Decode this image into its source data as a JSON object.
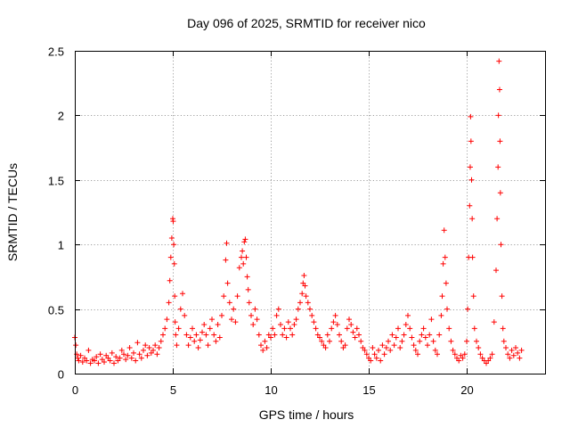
{
  "chart_data": {
    "type": "scatter",
    "title": "Day 096 of 2025, SRMTID for receiver nico",
    "xlabel": "GPS time / hours",
    "ylabel": "SRMTID / TECUs",
    "xlim": [
      0,
      24
    ],
    "ylim": [
      0,
      2.5
    ],
    "xticks": [
      0,
      5,
      10,
      15,
      20
    ],
    "xtick_labels": [
      "0",
      "5",
      "10",
      "15",
      "20"
    ],
    "yticks": [
      0,
      0.5,
      1,
      1.5,
      2,
      2.5
    ],
    "ytick_labels": [
      "0",
      "0.5",
      "1",
      "1.5",
      "2",
      "2.5"
    ],
    "grid": true,
    "marker": "+",
    "series": [
      {
        "name": "SRMTID",
        "color": "#ff0000",
        "x": [
          0.0,
          0.05,
          0.1,
          0.15,
          0.2,
          0.3,
          0.4,
          0.5,
          0.6,
          0.7,
          0.8,
          0.9,
          1.0,
          1.1,
          1.2,
          1.3,
          1.4,
          1.5,
          1.6,
          1.7,
          1.8,
          1.9,
          2.0,
          2.1,
          2.2,
          2.3,
          2.4,
          2.5,
          2.6,
          2.7,
          2.8,
          2.9,
          3.0,
          3.1,
          3.2,
          3.3,
          3.4,
          3.5,
          3.6,
          3.7,
          3.8,
          3.9,
          4.0,
          4.1,
          4.2,
          4.3,
          4.4,
          4.5,
          4.6,
          4.7,
          4.8,
          4.85,
          4.9,
          4.95,
          5.0,
          5.02,
          5.05,
          5.08,
          5.1,
          5.12,
          5.15,
          5.2,
          5.3,
          5.4,
          5.5,
          5.6,
          5.7,
          5.8,
          5.9,
          6.0,
          6.1,
          6.2,
          6.3,
          6.4,
          6.5,
          6.6,
          6.7,
          6.8,
          6.9,
          7.0,
          7.1,
          7.2,
          7.3,
          7.4,
          7.5,
          7.6,
          7.7,
          7.75,
          7.8,
          7.9,
          8.0,
          8.1,
          8.2,
          8.3,
          8.4,
          8.5,
          8.55,
          8.6,
          8.65,
          8.7,
          8.75,
          8.8,
          8.85,
          8.9,
          9.0,
          9.1,
          9.2,
          9.3,
          9.4,
          9.5,
          9.6,
          9.7,
          9.8,
          9.9,
          10.0,
          10.1,
          10.2,
          10.3,
          10.4,
          10.5,
          10.6,
          10.7,
          10.8,
          10.9,
          11.0,
          11.1,
          11.2,
          11.3,
          11.4,
          11.5,
          11.6,
          11.65,
          11.7,
          11.75,
          11.8,
          11.9,
          12.0,
          12.1,
          12.2,
          12.3,
          12.4,
          12.5,
          12.6,
          12.7,
          12.8,
          12.9,
          13.0,
          13.1,
          13.2,
          13.3,
          13.4,
          13.5,
          13.6,
          13.7,
          13.8,
          13.9,
          14.0,
          14.1,
          14.2,
          14.3,
          14.4,
          14.5,
          14.6,
          14.7,
          14.8,
          14.9,
          15.0,
          15.1,
          15.2,
          15.3,
          15.4,
          15.5,
          15.6,
          15.7,
          15.8,
          15.9,
          16.0,
          16.1,
          16.2,
          16.3,
          16.4,
          16.5,
          16.6,
          16.7,
          16.8,
          16.9,
          17.0,
          17.1,
          17.2,
          17.3,
          17.4,
          17.5,
          17.6,
          17.7,
          17.8,
          17.9,
          18.0,
          18.1,
          18.2,
          18.3,
          18.4,
          18.5,
          18.6,
          18.7,
          18.75,
          18.8,
          18.85,
          18.9,
          18.95,
          19.0,
          19.1,
          19.2,
          19.3,
          19.4,
          19.5,
          19.6,
          19.7,
          19.8,
          19.9,
          20.0,
          20.05,
          20.1,
          20.15,
          20.18,
          20.2,
          20.22,
          20.25,
          20.28,
          20.3,
          20.35,
          20.4,
          20.5,
          20.6,
          20.7,
          20.8,
          20.9,
          21.0,
          21.1,
          21.2,
          21.3,
          21.4,
          21.5,
          21.55,
          21.6,
          21.62,
          21.65,
          21.68,
          21.7,
          21.72,
          21.75,
          21.8,
          21.85,
          21.9,
          22.0,
          22.1,
          22.2,
          22.3,
          22.4,
          22.5,
          22.6,
          22.7,
          22.8
        ],
        "y": [
          0.28,
          0.22,
          0.15,
          0.12,
          0.1,
          0.14,
          0.09,
          0.12,
          0.1,
          0.18,
          0.08,
          0.11,
          0.1,
          0.13,
          0.08,
          0.15,
          0.11,
          0.09,
          0.14,
          0.12,
          0.1,
          0.16,
          0.08,
          0.13,
          0.1,
          0.12,
          0.18,
          0.15,
          0.11,
          0.14,
          0.2,
          0.12,
          0.16,
          0.1,
          0.24,
          0.15,
          0.12,
          0.18,
          0.22,
          0.14,
          0.2,
          0.16,
          0.18,
          0.22,
          0.15,
          0.2,
          0.25,
          0.3,
          0.35,
          0.42,
          0.55,
          0.72,
          0.9,
          1.05,
          1.2,
          1.18,
          1.0,
          0.85,
          0.6,
          0.4,
          0.3,
          0.22,
          0.35,
          0.5,
          0.62,
          0.45,
          0.3,
          0.22,
          0.28,
          0.35,
          0.25,
          0.3,
          0.2,
          0.26,
          0.32,
          0.38,
          0.3,
          0.22,
          0.35,
          0.42,
          0.3,
          0.25,
          0.38,
          0.28,
          0.45,
          0.6,
          0.88,
          1.01,
          0.7,
          0.55,
          0.42,
          0.5,
          0.4,
          0.6,
          0.82,
          0.9,
          0.95,
          0.85,
          1.02,
          1.04,
          0.9,
          0.75,
          0.65,
          0.55,
          0.45,
          0.38,
          0.5,
          0.42,
          0.3,
          0.22,
          0.18,
          0.25,
          0.2,
          0.3,
          0.28,
          0.35,
          0.3,
          0.45,
          0.5,
          0.38,
          0.3,
          0.35,
          0.28,
          0.4,
          0.35,
          0.3,
          0.38,
          0.42,
          0.5,
          0.55,
          0.62,
          0.7,
          0.76,
          0.68,
          0.6,
          0.55,
          0.5,
          0.45,
          0.4,
          0.35,
          0.3,
          0.28,
          0.25,
          0.22,
          0.2,
          0.3,
          0.25,
          0.35,
          0.4,
          0.45,
          0.38,
          0.3,
          0.25,
          0.2,
          0.22,
          0.35,
          0.42,
          0.38,
          0.32,
          0.28,
          0.35,
          0.3,
          0.25,
          0.2,
          0.18,
          0.15,
          0.12,
          0.1,
          0.2,
          0.15,
          0.12,
          0.18,
          0.1,
          0.22,
          0.15,
          0.2,
          0.25,
          0.18,
          0.3,
          0.22,
          0.28,
          0.35,
          0.2,
          0.25,
          0.3,
          0.38,
          0.45,
          0.35,
          0.28,
          0.22,
          0.18,
          0.15,
          0.25,
          0.3,
          0.35,
          0.28,
          0.22,
          0.3,
          0.42,
          0.25,
          0.18,
          0.15,
          0.3,
          0.45,
          0.6,
          0.85,
          1.11,
          0.9,
          0.7,
          0.5,
          0.35,
          0.25,
          0.18,
          0.15,
          0.12,
          0.1,
          0.14,
          0.12,
          0.15,
          0.25,
          0.5,
          0.9,
          1.3,
          1.6,
          1.99,
          1.8,
          1.5,
          1.2,
          0.9,
          0.6,
          0.35,
          0.25,
          0.2,
          0.15,
          0.12,
          0.1,
          0.08,
          0.1,
          0.12,
          0.15,
          0.4,
          0.8,
          1.2,
          1.6,
          2.0,
          2.42,
          2.2,
          1.8,
          1.4,
          1.0,
          0.6,
          0.35,
          0.25,
          0.2,
          0.15,
          0.12,
          0.18,
          0.14,
          0.2,
          0.16,
          0.12,
          0.18
        ]
      }
    ]
  }
}
